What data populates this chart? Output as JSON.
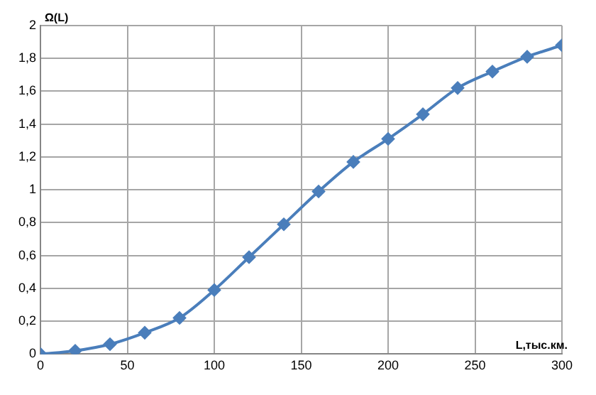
{
  "chart_data": {
    "type": "line",
    "xlabel": "L,тыс.км.",
    "ylabel": "Ω(L)",
    "x": [
      0,
      20,
      40,
      60,
      80,
      100,
      120,
      140,
      160,
      180,
      200,
      220,
      240,
      260,
      280,
      300
    ],
    "series": [
      {
        "color": "#4a7ebb",
        "values": [
          0,
          0.02,
          0.06,
          0.13,
          0.22,
          0.39,
          0.59,
          0.79,
          0.99,
          1.17,
          1.31,
          1.46,
          1.62,
          1.72,
          1.81,
          1.88
        ]
      }
    ],
    "xlim": [
      0,
      300
    ],
    "xticks": [
      0,
      50,
      100,
      150,
      200,
      250,
      300
    ],
    "ylim": [
      0,
      2
    ],
    "yticks": [
      0,
      {
        "value": 0.2,
        "label": "0,2"
      },
      {
        "value": 0.4,
        "label": "0,4"
      },
      {
        "value": 0.6,
        "label": "0,6"
      },
      {
        "value": 0.8,
        "label": "0,8"
      },
      1,
      {
        "value": 1.2,
        "label": "1,2"
      },
      {
        "value": 1.4,
        "label": "1,4"
      },
      {
        "value": 1.6,
        "label": "1,6"
      },
      {
        "value": 1.8,
        "label": "1,8"
      },
      2
    ],
    "grid": true,
    "marker": "diamond",
    "line_style": "solid",
    "legend": false
  }
}
